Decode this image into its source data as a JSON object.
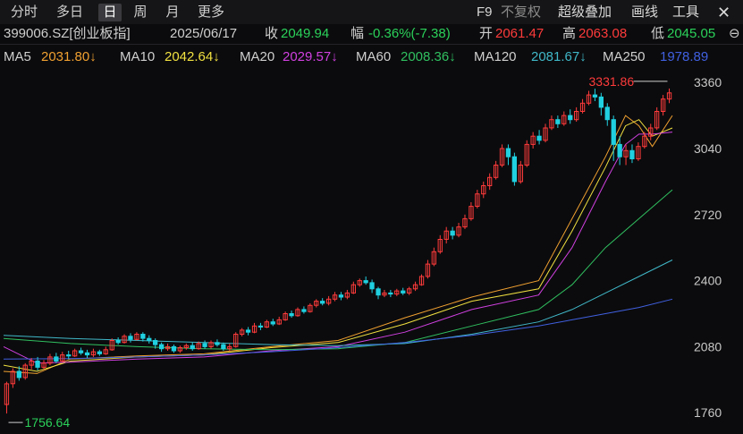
{
  "tabs": [
    "分时",
    "多日",
    "日",
    "周",
    "月",
    "更多"
  ],
  "active_tab": "日",
  "right_tabs": [
    "F9",
    "不复权",
    "超级叠加",
    "画线",
    "工具"
  ],
  "quote": {
    "code": "399006.SZ[创业板指]",
    "date": "2025/06/17",
    "close_label": "收",
    "close": "2049.94",
    "change_label": "幅",
    "change": "-0.36%(-7.38)",
    "open_label": "开",
    "open": "2061.47",
    "high_label": "高",
    "high": "2063.08",
    "low_label": "低",
    "low": "2045.05"
  },
  "ma": [
    {
      "label": "MA5",
      "value": "2031.80↓",
      "color": "#f0a030"
    },
    {
      "label": "MA10",
      "value": "2042.64↓",
      "color": "#f0e040"
    },
    {
      "label": "MA20",
      "value": "2029.57↓",
      "color": "#d040e0"
    },
    {
      "label": "MA60",
      "value": "2008.36↓",
      "color": "#30c060"
    },
    {
      "label": "MA120",
      "value": "2081.67↓",
      "color": "#40b8c8"
    },
    {
      "label": "MA250",
      "value": "1978.89",
      "color": "#4060e0"
    }
  ],
  "colors": {
    "up": "#ff3b3b",
    "down": "#20d0e0",
    "background": "#0b0b0d",
    "annotation": "#ff3b3b",
    "low_annotation": "#2bd15a"
  },
  "chart_data": {
    "type": "candlestick",
    "ylim": [
      1700,
      3400
    ],
    "yticks": [
      3360,
      3040,
      2720,
      2400,
      2080,
      1760
    ],
    "grid": false,
    "annotations": {
      "high": "3331.86",
      "low": "1756.64"
    },
    "candles": [
      [
        1800,
        1900,
        1756,
        1910
      ],
      [
        1900,
        1960,
        1880,
        1975
      ],
      [
        1960,
        1930,
        1915,
        1985
      ],
      [
        1930,
        1990,
        1920,
        2000
      ],
      [
        1990,
        2010,
        1970,
        2025
      ],
      [
        2010,
        1980,
        1965,
        2030
      ],
      [
        1980,
        2000,
        1970,
        2015
      ],
      [
        2000,
        2030,
        1990,
        2045
      ],
      [
        2030,
        2010,
        2000,
        2050
      ],
      [
        2010,
        2040,
        2005,
        2055
      ],
      [
        2040,
        2035,
        2020,
        2060
      ],
      [
        2035,
        2060,
        2030,
        2070
      ],
      [
        2060,
        2050,
        2040,
        2075
      ],
      [
        2050,
        2040,
        2025,
        2065
      ],
      [
        2040,
        2055,
        2030,
        2070
      ],
      [
        2055,
        2045,
        2035,
        2065
      ],
      [
        2045,
        2065,
        2040,
        2080
      ],
      [
        2065,
        2110,
        2060,
        2120
      ],
      [
        2110,
        2100,
        2090,
        2125
      ],
      [
        2100,
        2130,
        2095,
        2140
      ],
      [
        2130,
        2115,
        2100,
        2145
      ],
      [
        2115,
        2140,
        2110,
        2150
      ],
      [
        2140,
        2120,
        2105,
        2150
      ],
      [
        2120,
        2110,
        2095,
        2135
      ],
      [
        2110,
        2090,
        2070,
        2120
      ],
      [
        2090,
        2070,
        2055,
        2100
      ],
      [
        2070,
        2080,
        2060,
        2095
      ],
      [
        2080,
        2060,
        2050,
        2090
      ],
      [
        2060,
        2075,
        2050,
        2085
      ],
      [
        2075,
        2085,
        2065,
        2095
      ],
      [
        2085,
        2070,
        2060,
        2100
      ],
      [
        2070,
        2095,
        2065,
        2105
      ],
      [
        2095,
        2080,
        2070,
        2110
      ],
      [
        2080,
        2100,
        2070,
        2110
      ],
      [
        2100,
        2090,
        2080,
        2115
      ],
      [
        2090,
        2070,
        2060,
        2100
      ],
      [
        2070,
        2080,
        2060,
        2095
      ],
      [
        2080,
        2140,
        2075,
        2150
      ],
      [
        2140,
        2160,
        2130,
        2170
      ],
      [
        2160,
        2150,
        2135,
        2175
      ],
      [
        2150,
        2180,
        2145,
        2195
      ],
      [
        2180,
        2175,
        2160,
        2195
      ],
      [
        2175,
        2200,
        2170,
        2210
      ],
      [
        2200,
        2190,
        2180,
        2215
      ],
      [
        2190,
        2210,
        2185,
        2225
      ],
      [
        2210,
        2240,
        2205,
        2250
      ],
      [
        2240,
        2230,
        2220,
        2255
      ],
      [
        2230,
        2260,
        2225,
        2270
      ],
      [
        2260,
        2250,
        2240,
        2275
      ],
      [
        2250,
        2280,
        2245,
        2290
      ],
      [
        2280,
        2300,
        2270,
        2310
      ],
      [
        2300,
        2290,
        2280,
        2315
      ],
      [
        2290,
        2310,
        2280,
        2325
      ],
      [
        2310,
        2330,
        2300,
        2345
      ],
      [
        2330,
        2320,
        2305,
        2345
      ],
      [
        2320,
        2340,
        2310,
        2355
      ],
      [
        2340,
        2380,
        2335,
        2395
      ],
      [
        2380,
        2400,
        2370,
        2410
      ],
      [
        2400,
        2390,
        2380,
        2420
      ],
      [
        2390,
        2360,
        2340,
        2405
      ],
      [
        2360,
        2330,
        2310,
        2370
      ],
      [
        2330,
        2340,
        2320,
        2355
      ],
      [
        2340,
        2335,
        2320,
        2355
      ],
      [
        2335,
        2350,
        2325,
        2360
      ],
      [
        2350,
        2340,
        2330,
        2365
      ],
      [
        2340,
        2360,
        2330,
        2370
      ],
      [
        2360,
        2380,
        2350,
        2395
      ],
      [
        2380,
        2420,
        2375,
        2430
      ],
      [
        2420,
        2480,
        2410,
        2500
      ],
      [
        2480,
        2540,
        2470,
        2560
      ],
      [
        2540,
        2600,
        2530,
        2620
      ],
      [
        2600,
        2640,
        2580,
        2660
      ],
      [
        2640,
        2620,
        2600,
        2660
      ],
      [
        2620,
        2660,
        2610,
        2680
      ],
      [
        2660,
        2700,
        2650,
        2720
      ],
      [
        2700,
        2760,
        2690,
        2780
      ],
      [
        2760,
        2820,
        2750,
        2840
      ],
      [
        2820,
        2860,
        2800,
        2880
      ],
      [
        2860,
        2900,
        2840,
        2920
      ],
      [
        2900,
        2960,
        2890,
        2980
      ],
      [
        2960,
        3040,
        2950,
        3060
      ],
      [
        3040,
        3000,
        2960,
        3060
      ],
      [
        3000,
        2880,
        2860,
        3020
      ],
      [
        2880,
        2960,
        2870,
        2980
      ],
      [
        2960,
        3060,
        2950,
        3080
      ],
      [
        3060,
        3100,
        3040,
        3120
      ],
      [
        3100,
        3080,
        3060,
        3130
      ],
      [
        3080,
        3140,
        3070,
        3160
      ],
      [
        3140,
        3180,
        3130,
        3200
      ],
      [
        3180,
        3160,
        3140,
        3200
      ],
      [
        3160,
        3200,
        3150,
        3220
      ],
      [
        3200,
        3180,
        3160,
        3230
      ],
      [
        3180,
        3220,
        3170,
        3240
      ],
      [
        3220,
        3260,
        3210,
        3280
      ],
      [
        3260,
        3300,
        3250,
        3320
      ],
      [
        3300,
        3290,
        3270,
        3330
      ],
      [
        3290,
        3240,
        3200,
        3310
      ],
      [
        3240,
        3180,
        3150,
        3260
      ],
      [
        3180,
        3060,
        2980,
        3200
      ],
      [
        3060,
        3000,
        2960,
        3100
      ],
      [
        3000,
        3030,
        2960,
        3060
      ],
      [
        3030,
        2990,
        2970,
        3060
      ],
      [
        2990,
        3050,
        2980,
        3070
      ],
      [
        3050,
        3100,
        3040,
        3120
      ],
      [
        3100,
        3140,
        3080,
        3160
      ],
      [
        3140,
        3220,
        3130,
        3240
      ],
      [
        3220,
        3280,
        3200,
        3300
      ],
      [
        3280,
        3310,
        3260,
        3331
      ]
    ],
    "ma": {
      "MA5": [
        [
          0,
          1960
        ],
        [
          0.05,
          1950
        ],
        [
          0.1,
          2020
        ],
        [
          0.2,
          2035
        ],
        [
          0.3,
          2045
        ],
        [
          0.4,
          2080
        ],
        [
          0.5,
          2110
        ],
        [
          0.6,
          2220
        ],
        [
          0.7,
          2320
        ],
        [
          0.8,
          2400
        ],
        [
          0.85,
          2700
        ],
        [
          0.9,
          3000
        ],
        [
          0.93,
          3200
        ],
        [
          0.95,
          3150
        ],
        [
          0.97,
          3050
        ],
        [
          1,
          3200
        ]
      ],
      "MA10": [
        [
          0,
          1990
        ],
        [
          0.05,
          1960
        ],
        [
          0.1,
          2010
        ],
        [
          0.2,
          2030
        ],
        [
          0.3,
          2040
        ],
        [
          0.4,
          2075
        ],
        [
          0.5,
          2100
        ],
        [
          0.6,
          2190
        ],
        [
          0.7,
          2300
        ],
        [
          0.8,
          2360
        ],
        [
          0.85,
          2640
        ],
        [
          0.9,
          2950
        ],
        [
          0.93,
          3150
        ],
        [
          0.95,
          3180
        ],
        [
          0.97,
          3100
        ],
        [
          1,
          3140
        ]
      ],
      "MA20": [
        [
          0,
          2080
        ],
        [
          0.05,
          2000
        ],
        [
          0.1,
          2005
        ],
        [
          0.2,
          2020
        ],
        [
          0.3,
          2030
        ],
        [
          0.4,
          2060
        ],
        [
          0.5,
          2080
        ],
        [
          0.6,
          2150
        ],
        [
          0.7,
          2260
        ],
        [
          0.8,
          2330
        ],
        [
          0.85,
          2560
        ],
        [
          0.9,
          2880
        ],
        [
          0.93,
          3060
        ],
        [
          0.95,
          3110
        ],
        [
          0.97,
          3110
        ],
        [
          1,
          3120
        ]
      ],
      "MA60": [
        [
          0,
          2120
        ],
        [
          0.1,
          2095
        ],
        [
          0.2,
          2080
        ],
        [
          0.3,
          2070
        ],
        [
          0.4,
          2065
        ],
        [
          0.5,
          2070
        ],
        [
          0.6,
          2100
        ],
        [
          0.7,
          2180
        ],
        [
          0.8,
          2260
        ],
        [
          0.85,
          2380
        ],
        [
          0.9,
          2560
        ],
        [
          0.95,
          2700
        ],
        [
          1,
          2840
        ]
      ],
      "MA120": [
        [
          0,
          2135
        ],
        [
          0.1,
          2120
        ],
        [
          0.2,
          2110
        ],
        [
          0.3,
          2100
        ],
        [
          0.4,
          2090
        ],
        [
          0.5,
          2085
        ],
        [
          0.6,
          2095
        ],
        [
          0.7,
          2140
        ],
        [
          0.8,
          2200
        ],
        [
          0.85,
          2260
        ],
        [
          0.9,
          2340
        ],
        [
          0.95,
          2420
        ],
        [
          1,
          2500
        ]
      ],
      "MA250": [
        [
          0,
          2020
        ],
        [
          0.1,
          2022
        ],
        [
          0.2,
          2030
        ],
        [
          0.3,
          2040
        ],
        [
          0.4,
          2055
        ],
        [
          0.5,
          2075
        ],
        [
          0.6,
          2100
        ],
        [
          0.7,
          2135
        ],
        [
          0.8,
          2180
        ],
        [
          0.85,
          2210
        ],
        [
          0.9,
          2240
        ],
        [
          0.95,
          2270
        ],
        [
          1,
          2310
        ]
      ]
    }
  }
}
